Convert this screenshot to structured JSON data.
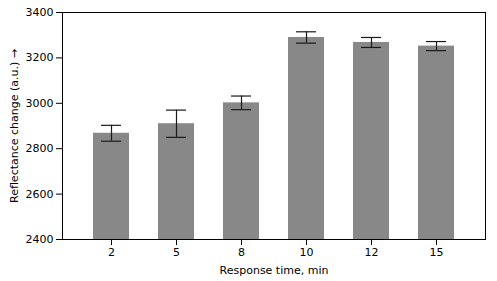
{
  "chart_data": {
    "type": "bar",
    "categories": [
      "2",
      "5",
      "8",
      "10",
      "12",
      "15"
    ],
    "values": [
      2868,
      2910,
      3002,
      3290,
      3268,
      3252
    ],
    "errors": [
      35,
      60,
      30,
      25,
      22,
      20
    ],
    "color": "#888888",
    "xlabel": "Response time, min",
    "ylabel": "Reflectance change (a.u.)",
    "ylim": [
      2400,
      3400
    ],
    "yticks": [
      2400,
      2600,
      2800,
      3000,
      3200,
      3400
    ],
    "grid": false
  }
}
